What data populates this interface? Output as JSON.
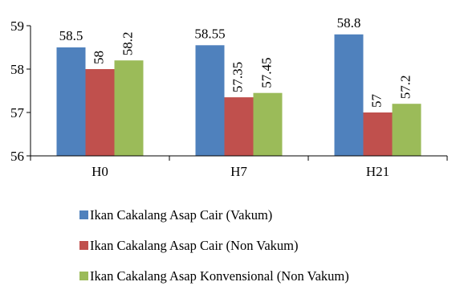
{
  "chart_data": {
    "type": "bar",
    "categories": [
      "H0",
      "H7",
      "H21"
    ],
    "series": [
      {
        "name": "Ikan Cakalang Asap Cair (Vakum)",
        "values": [
          58.5,
          58.55,
          58.8
        ],
        "labels": [
          "58.5",
          "58.55",
          "58.8"
        ],
        "color": "#4F81BD",
        "label_rotated": false
      },
      {
        "name": "Ikan Cakalang Asap Cair (Non Vakum)",
        "values": [
          58,
          57.35,
          57
        ],
        "labels": [
          "58",
          "57.35",
          "57"
        ],
        "color": "#C0504D",
        "label_rotated": true
      },
      {
        "name": "Ikan Cakalang Asap Konvensional (Non Vakum)",
        "values": [
          58.2,
          57.45,
          57.2
        ],
        "labels": [
          "58.2",
          "57.45",
          "57.2"
        ],
        "color": "#9BBB59",
        "label_rotated": true
      }
    ],
    "ylim": [
      56,
      59
    ],
    "yticks": [
      56,
      57,
      58,
      59
    ],
    "grid": false,
    "legend_position": "bottom",
    "title": "",
    "xlabel": "",
    "ylabel": ""
  }
}
